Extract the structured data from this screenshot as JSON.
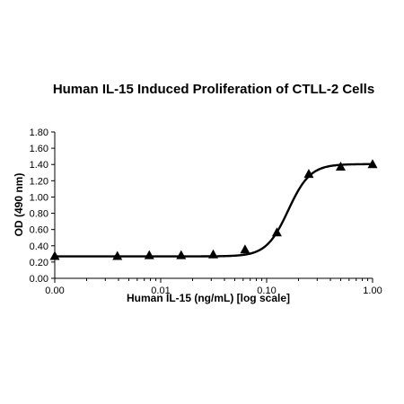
{
  "chart_data": {
    "type": "scatter",
    "title": "Human IL-15 Induced Proliferation of CTLL-2 Cells",
    "xlabel": "Human IL-15 (ng/mL) [log scale]",
    "ylabel": "OD (490 nm)",
    "x_scale": "log",
    "xlim": [
      0.001,
      1.0
    ],
    "ylim": [
      0.0,
      1.8
    ],
    "x_ticks": [
      0.001,
      0.01,
      0.1,
      1.0
    ],
    "x_tick_labels": [
      "0.00",
      "0.01",
      "0.10",
      "1.00"
    ],
    "y_ticks": [
      0,
      0.2,
      0.4,
      0.6,
      0.8,
      1.0,
      1.2,
      1.4,
      1.6,
      1.8
    ],
    "y_tick_labels": [
      "0.00",
      "0.20",
      "0.40",
      "0.60",
      "0.80",
      "1.00",
      "1.20",
      "1.40",
      "1.60",
      "1.80"
    ],
    "grid": false,
    "marker": "triangle",
    "series": [
      {
        "x": [
          0.001,
          0.0039,
          0.0078,
          0.0156,
          0.0313,
          0.0625,
          0.125,
          0.25,
          0.5,
          1.0
        ],
        "y": [
          0.27,
          0.27,
          0.28,
          0.28,
          0.29,
          0.35,
          0.56,
          1.28,
          1.37,
          1.4
        ]
      }
    ],
    "fit": {
      "bottom": 0.27,
      "top": 1.405,
      "ec50": 0.16,
      "hill": 4.2
    }
  }
}
